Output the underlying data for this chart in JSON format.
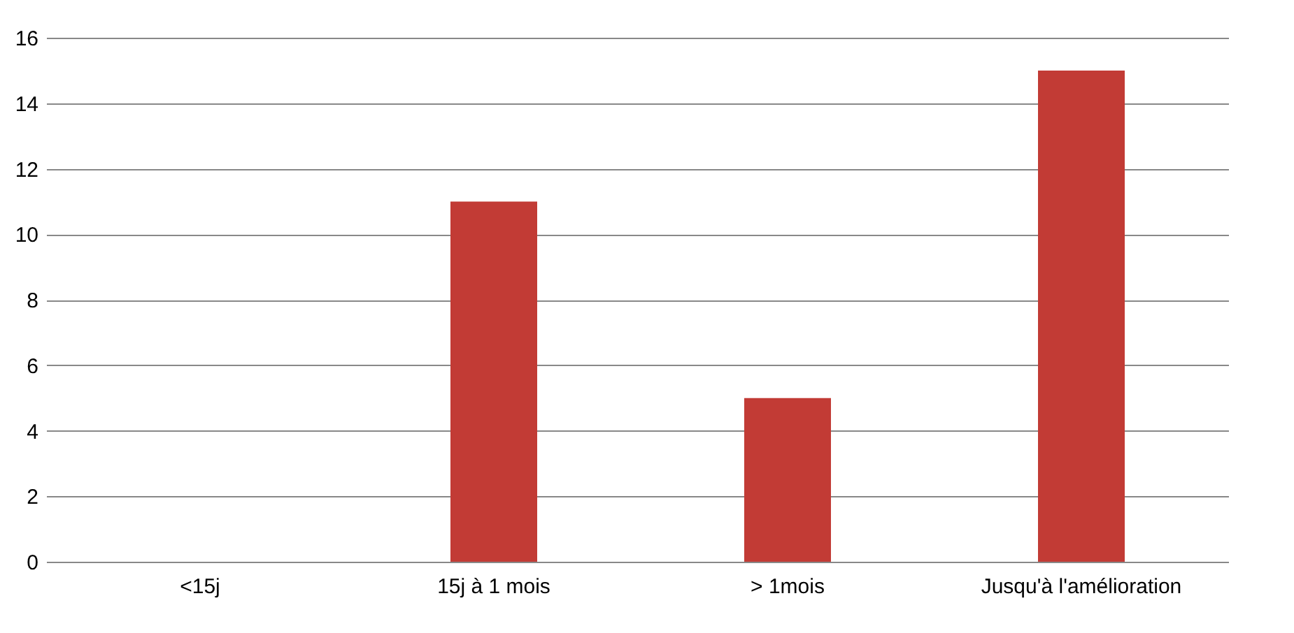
{
  "chart_data": {
    "type": "bar",
    "categories": [
      "<15j",
      "15j à 1 mois",
      "> 1mois",
      "Jusqu'à l'amélioration"
    ],
    "values": [
      0,
      11,
      5,
      15
    ],
    "color": "#c23b35",
    "ylim": [
      0,
      16
    ],
    "yticks": [
      0,
      2,
      4,
      6,
      8,
      10,
      12,
      14,
      16
    ],
    "grid": "y"
  }
}
